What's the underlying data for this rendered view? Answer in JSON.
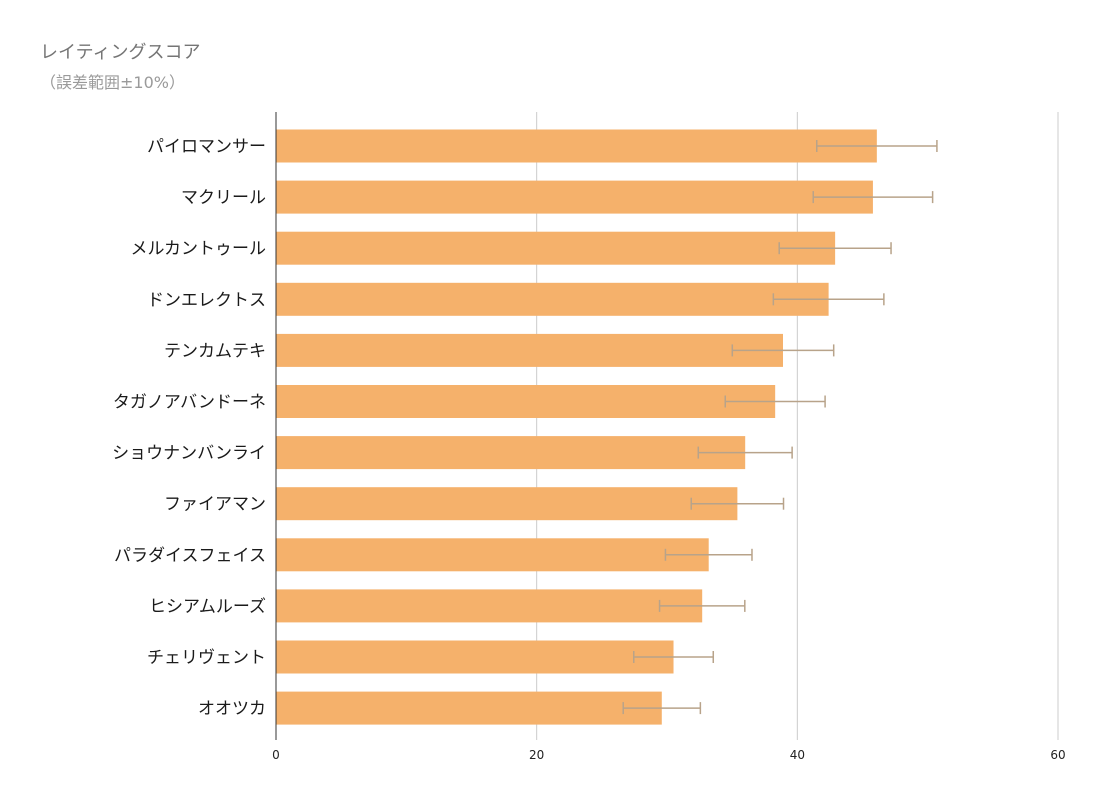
{
  "chart_data": {
    "type": "bar",
    "orientation": "horizontal",
    "title": "レイティングスコア",
    "subtitle": "（誤差範囲±10%）",
    "categories": [
      "パイロマンサー",
      "マクリール",
      "メルカントゥール",
      "ドンエレクトス",
      "テンカムテキ",
      "タガノアバンドーネ",
      "ショウナンバンライ",
      "ファイアマン",
      "パラダイスフェイス",
      "ヒシアムルーズ",
      "チェリヴェント",
      "オオツカ"
    ],
    "values": [
      46.1,
      45.8,
      42.9,
      42.4,
      38.9,
      38.3,
      36.0,
      35.4,
      33.2,
      32.7,
      30.5,
      29.6
    ],
    "error_bars": {
      "type": "percent",
      "value": 10
    },
    "xlim": [
      0,
      60
    ],
    "xticks": [
      0,
      20,
      40,
      60
    ],
    "grid": true,
    "colors": {
      "bar": "#f5b16b",
      "error_bar": "#b8a38a",
      "grid": "#cccccc",
      "axis": "#333333"
    }
  }
}
